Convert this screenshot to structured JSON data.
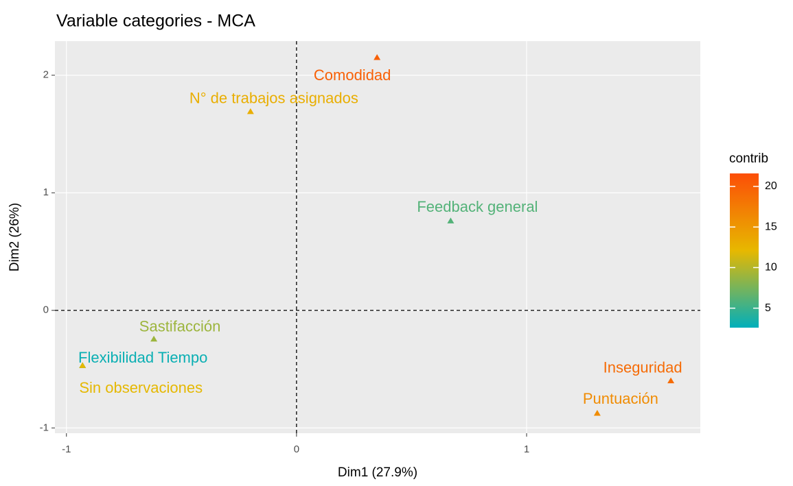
{
  "chart_data": {
    "type": "scatter",
    "title": "Variable categories - MCA",
    "xlabel": "Dim1 (27.9%)",
    "ylabel": "Dim2 (26%)",
    "labels": [
      "Comodidad",
      "N° de trabajos asignados",
      "Feedback general",
      "Sastifacción",
      "Flexibilidad Tiempo",
      "Sin observaciones",
      "Inseguridad",
      "Puntuación"
    ],
    "x": [
      0.35,
      -0.2,
      0.67,
      -0.62,
      -0.93,
      -0.93,
      1.627,
      1.307
    ],
    "y": [
      2.15,
      1.69,
      0.76,
      -0.245,
      -0.47,
      -0.47,
      -0.6,
      -0.876
    ],
    "contrib": [
      20,
      13,
      6,
      9,
      3,
      12,
      19,
      16
    ],
    "xlim": [
      -1.05,
      1.755
    ],
    "ylim": [
      -1.045,
      2.29
    ],
    "xticks": [
      -1,
      0,
      1
    ],
    "yticks": [
      -1,
      0,
      1,
      2
    ],
    "reference_lines": {
      "x": 0,
      "y": 0
    },
    "grid": true,
    "legend": {
      "title": "contrib",
      "colors": [
        "#00AFBB",
        "#E7B800",
        "#FC4E07"
      ],
      "lim": [
        2.6,
        21.6
      ],
      "ticks": [
        5,
        10,
        15,
        20
      ],
      "position": "right"
    }
  }
}
